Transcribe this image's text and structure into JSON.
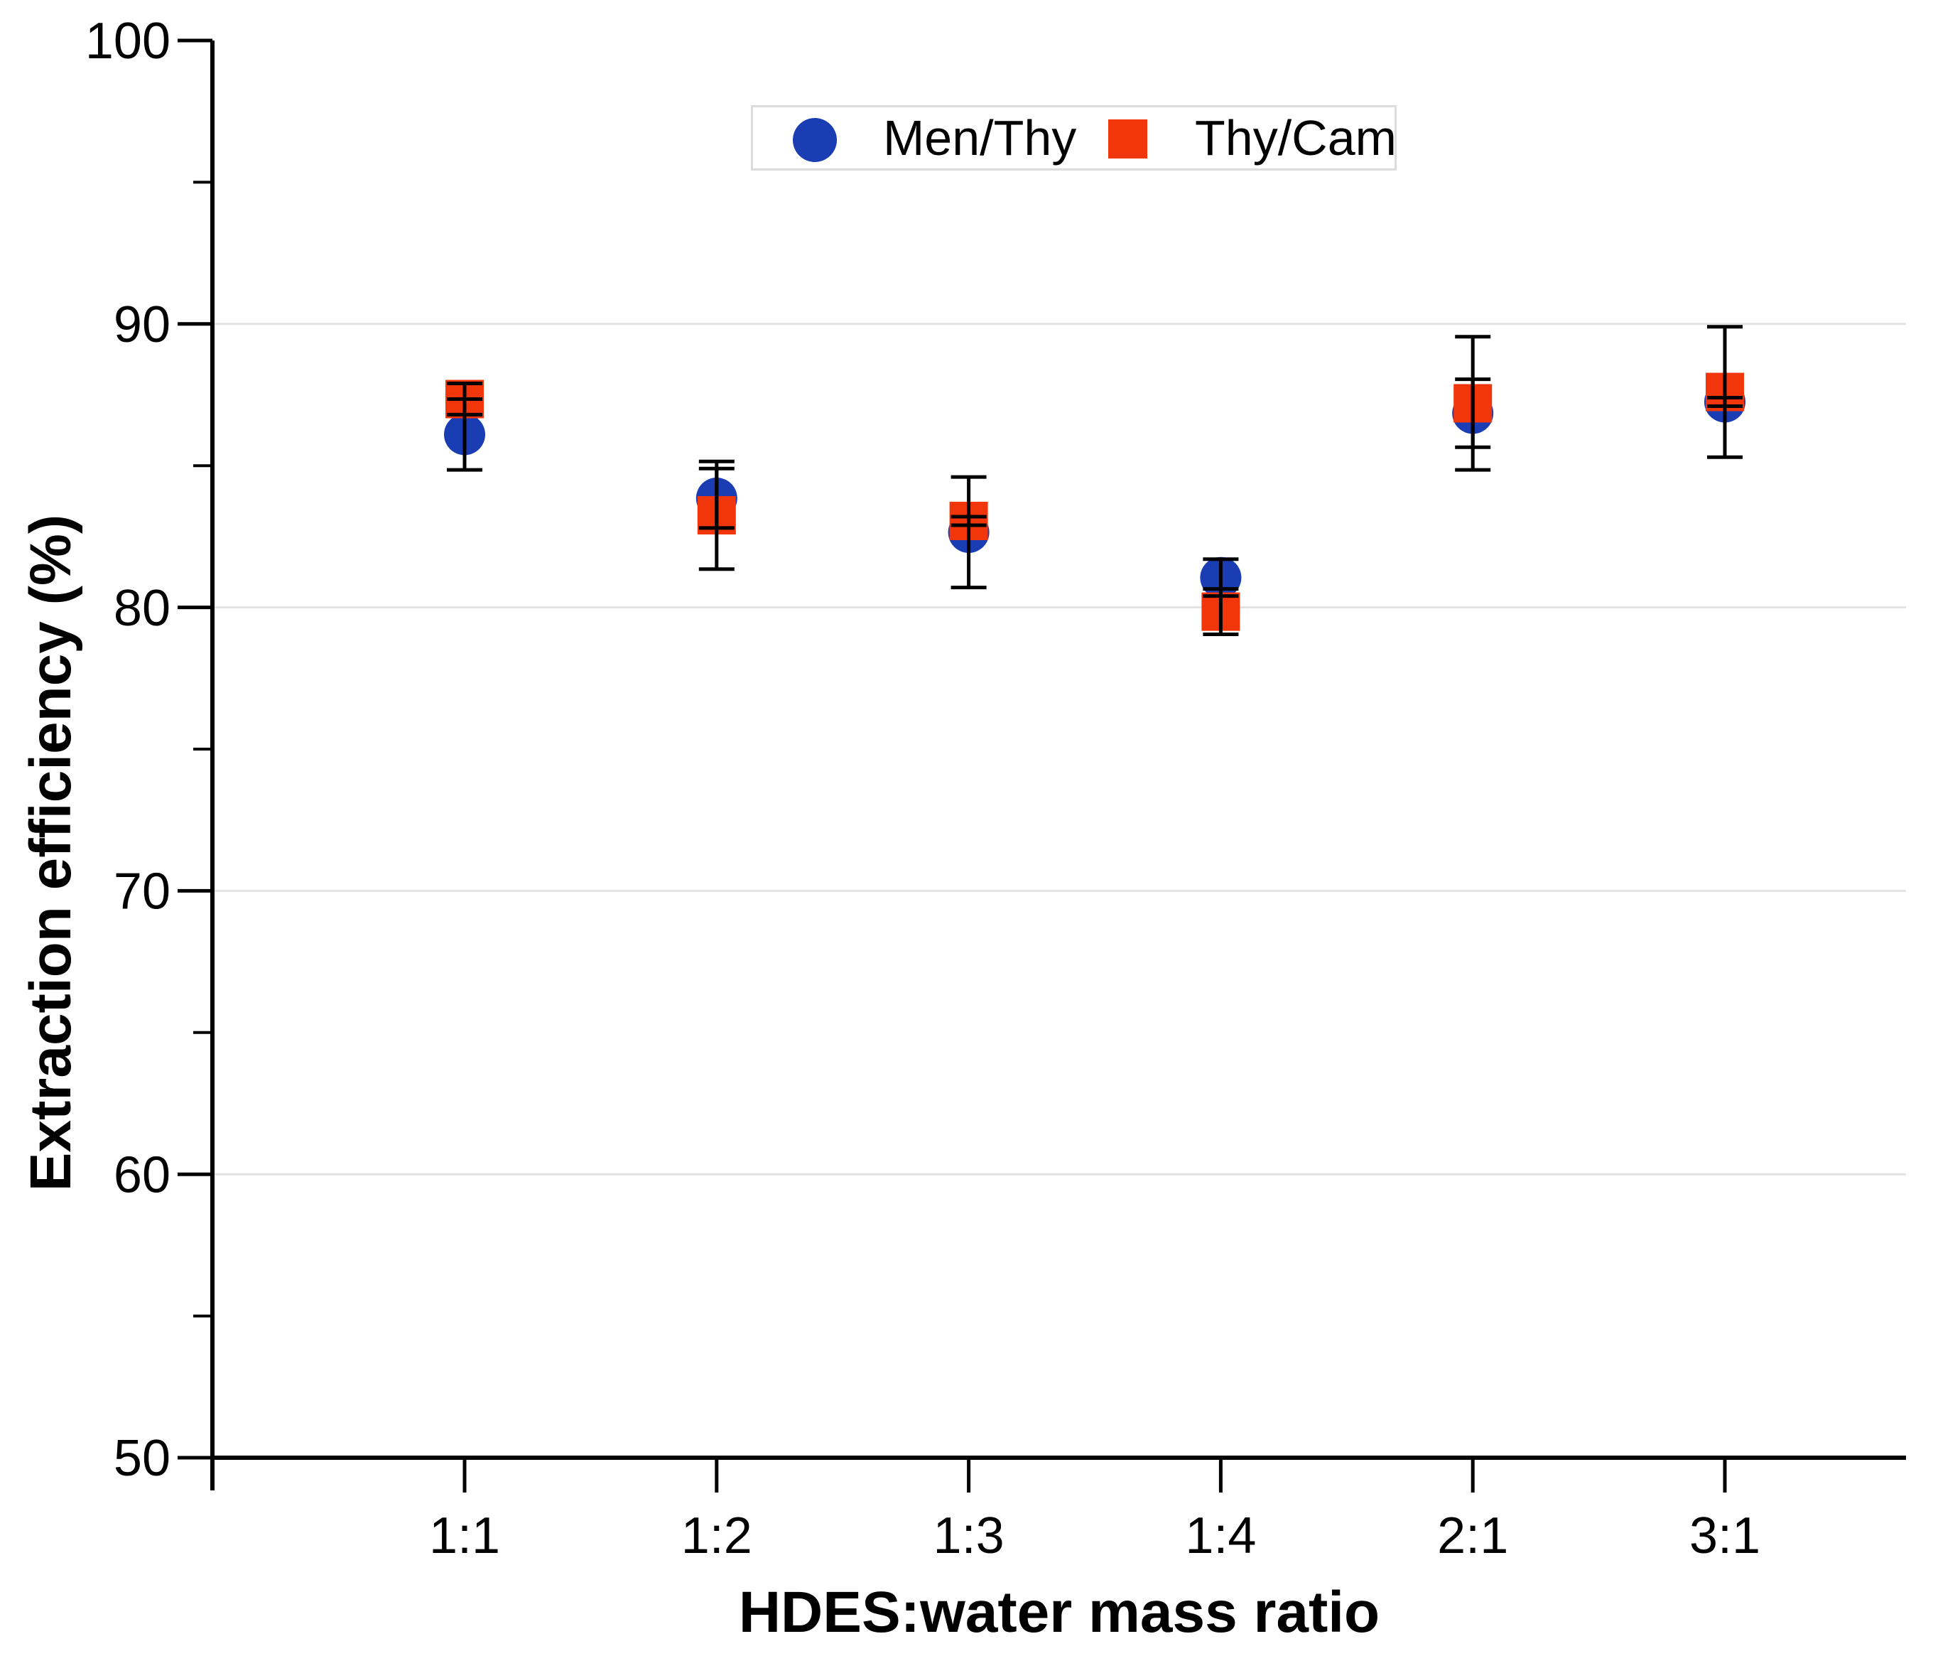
{
  "chart_data": {
    "type": "scatter",
    "title": "",
    "xlabel": "HDES:water mass ratio",
    "ylabel": "Extraction efficiency (%)",
    "categories": [
      "1:1",
      "1:2",
      "1:3",
      "1:4",
      "2:1",
      "3:1"
    ],
    "ylim": [
      50,
      100
    ],
    "yticks": [
      50,
      60,
      70,
      80,
      90,
      100
    ],
    "yticks_minor": [
      55,
      65,
      75,
      85,
      95
    ],
    "grid": "horizontal-major",
    "legend_position": "top-center",
    "series": [
      {
        "name": "Men/Thy",
        "marker": "circle",
        "color": "#1b3db3",
        "values": [
          86.1,
          83.85,
          82.65,
          81.05,
          86.85,
          87.25
        ],
        "errors": [
          1.25,
          1.05,
          1.95,
          0.65,
          1.2,
          0.15
        ]
      },
      {
        "name": "Thy/Cam",
        "marker": "square",
        "color": "#f2360b",
        "values": [
          87.35,
          83.25,
          83.05,
          79.85,
          87.2,
          87.6
        ],
        "errors": [
          0.55,
          1.9,
          0.15,
          0.8,
          2.35,
          2.3
        ]
      }
    ],
    "colors": {
      "axis": "#000000",
      "grid": "#e3e3e3",
      "legend_border": "#dcdcdc",
      "background": "#ffffff"
    }
  }
}
